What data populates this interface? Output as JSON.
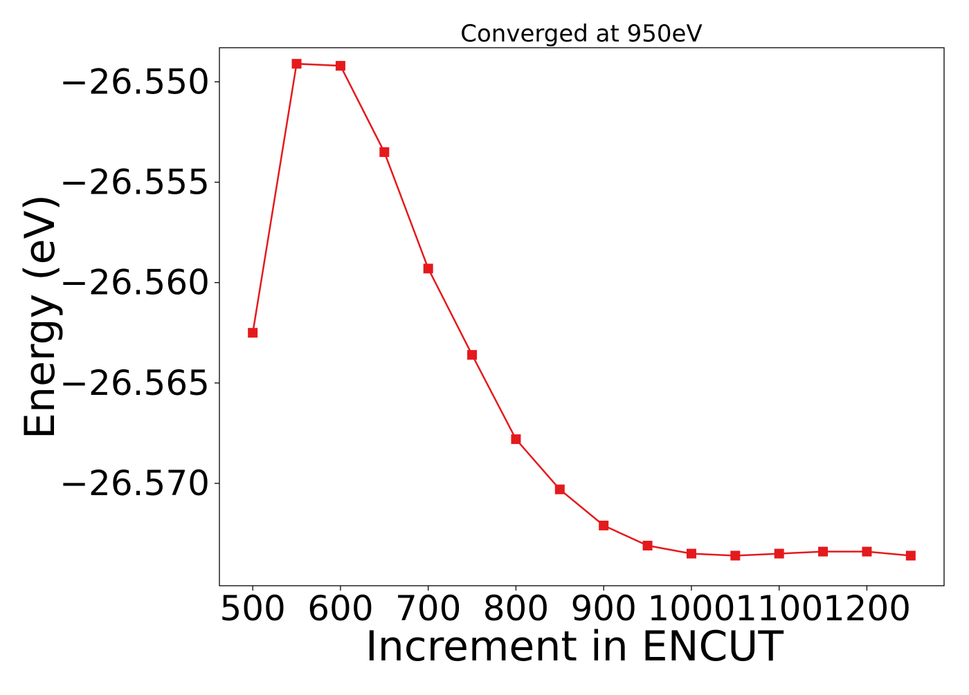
{
  "chart_data": {
    "type": "line",
    "title": "Converged at 950eV",
    "xlabel": "Increment in ENCUT",
    "ylabel": "Energy (eV)",
    "x_ticks": [
      500,
      600,
      700,
      800,
      900,
      1000,
      1100,
      1200
    ],
    "x_tick_labels": [
      "500",
      "600",
      "700",
      "800",
      "900",
      "1000",
      "1100",
      "1200"
    ],
    "y_ticks": [
      -26.55,
      -26.555,
      -26.56,
      -26.565,
      -26.57
    ],
    "y_tick_labels": [
      "−26.550",
      "−26.555",
      "−26.560",
      "−26.565",
      "−26.570"
    ],
    "xlim": [
      462,
      1288
    ],
    "ylim": [
      -26.5751,
      -26.5483
    ],
    "grid": false,
    "series": [
      {
        "color": "#e41a1c",
        "marker": "square",
        "x": [
          500,
          550,
          600,
          650,
          700,
          750,
          800,
          850,
          900,
          950,
          1000,
          1050,
          1100,
          1150,
          1200,
          1250
        ],
        "y": [
          -26.5625,
          -26.5491,
          -26.5492,
          -26.5535,
          -26.5593,
          -26.5636,
          -26.5678,
          -26.5703,
          -26.5721,
          -26.5731,
          -26.5735,
          -26.5736,
          -26.5735,
          -26.5734,
          -26.5734,
          -26.5736
        ]
      }
    ]
  }
}
